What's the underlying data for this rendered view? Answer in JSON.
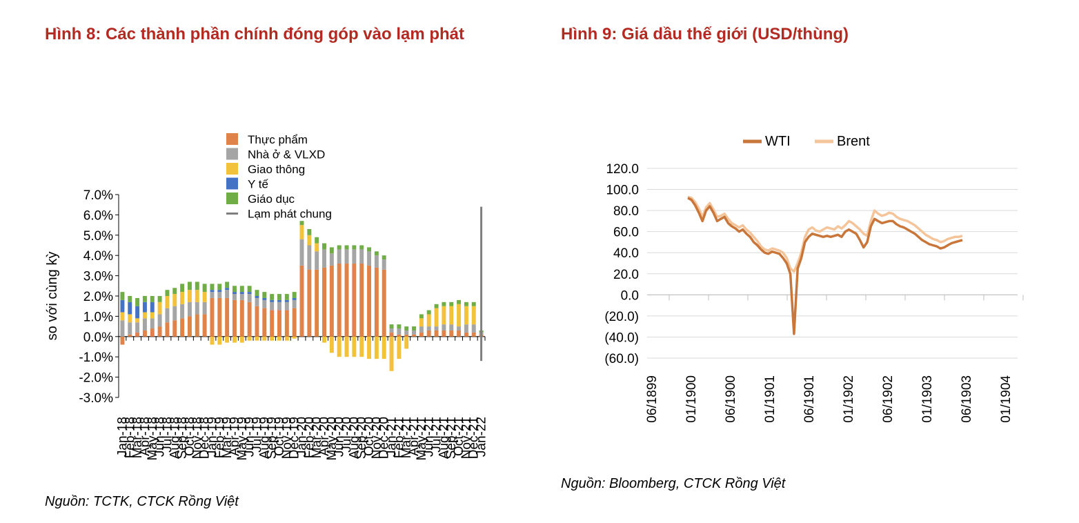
{
  "figure8": {
    "title": "Hình 8: Các thành phần chính đóng góp vào lạm phát",
    "source": "Nguồn: TCTK, CTCK Rồng Việt"
  },
  "figure9": {
    "title": "Hình 9: Giá dầu thế giới (USD/thùng)",
    "source": "Nguồn:  Bloomberg, CTCK Rồng Việt"
  },
  "chart_data": [
    {
      "type": "bar",
      "stacked": true,
      "ylabel": "so với cùng kỳ",
      "ylim": [
        -3.0,
        7.0
      ],
      "yticks": [
        "7.0%",
        "6.0%",
        "5.0%",
        "4.0%",
        "3.0%",
        "2.0%",
        "1.0%",
        "0.0%",
        "-1.0%",
        "-2.0%",
        "-3.0%"
      ],
      "legend_position": "top-center",
      "categories": [
        "Jan-18",
        "Feb-18",
        "Mar-18",
        "Apr-18",
        "May-18",
        "Jun-18",
        "Jul-18",
        "Aug-18",
        "Sep-18",
        "Oct-18",
        "Nov-18",
        "Dec-18",
        "Jan-19",
        "Feb-19",
        "Mar-19",
        "Apr-19",
        "May-19",
        "Jun-19",
        "Jul-19",
        "Aug-19",
        "Sep-19",
        "Oct-19",
        "Nov-19",
        "Dec-19",
        "Jan-20",
        "Feb-20",
        "Mar-20",
        "Apr-20",
        "May-20",
        "Jun-20",
        "Jul-20",
        "Aug-20",
        "Sep-20",
        "Oct-20",
        "Nov-20",
        "Dec-20",
        "Jan-21",
        "Feb-21",
        "Mar-21",
        "Apr-21",
        "May-21",
        "Jun-21",
        "Jul-21",
        "Aug-21",
        "Sep-21",
        "Oct-21",
        "Nov-21",
        "Dec-21",
        "Jan-22"
      ],
      "tick_labels": [
        "Jan-18",
        "Feb-18",
        "Mar-18",
        "Apr-18",
        "May-18",
        "Jun-18",
        "Jul-18",
        "Aug-18",
        "Sep-18",
        "Oct-18",
        "Nov-18",
        "Dec-18",
        "Jan-19",
        "Feb-19",
        "Mar-19",
        "Apr-19",
        "May-19",
        "Jun-19",
        "Jul-19",
        "Aug-19",
        "Sep-19",
        "Oct-19",
        "Nov-19",
        "Dec-19",
        "Jan-20",
        "Feb-20",
        "Mar-20",
        "Apr-20",
        "May-20",
        "Jun-20",
        "Jul-20",
        "Aug-20",
        "Sep-20",
        "Oct-20",
        "Nov-20",
        "Dec-20",
        "Jan-21",
        "Feb-21",
        "Mar-21",
        "Apr-21",
        "May-21",
        "Jun-21",
        "Jul-21",
        "Aug-21",
        "Sep-21",
        "Oct-21",
        "Nov-21",
        "Dec-21",
        "Jan-22"
      ],
      "series": [
        {
          "name": "Thực phẩm",
          "color": "#e0834a",
          "values": [
            -0.4,
            0.1,
            0.2,
            0.3,
            0.4,
            0.5,
            0.7,
            0.8,
            0.9,
            1.0,
            1.1,
            1.1,
            1.9,
            1.9,
            1.9,
            1.8,
            1.8,
            1.7,
            1.5,
            1.4,
            1.3,
            1.3,
            1.3,
            1.4,
            3.5,
            3.3,
            3.3,
            3.4,
            3.5,
            3.6,
            3.6,
            3.6,
            3.6,
            3.5,
            3.4,
            3.3,
            0.2,
            0.1,
            0.1,
            0.1,
            0.2,
            0.3,
            0.3,
            0.3,
            0.3,
            0.3,
            0.2,
            0.2,
            0.1
          ]
        },
        {
          "name": "Nhà ở & VLXD",
          "color": "#a5a5a5",
          "values": [
            0.8,
            0.6,
            0.5,
            0.6,
            0.5,
            0.6,
            0.7,
            0.7,
            0.7,
            0.7,
            0.6,
            0.6,
            0.3,
            0.3,
            0.4,
            0.3,
            0.3,
            0.4,
            0.4,
            0.4,
            0.4,
            0.4,
            0.4,
            0.4,
            1.3,
            1.2,
            0.9,
            0.9,
            0.6,
            0.7,
            0.7,
            0.7,
            0.7,
            0.7,
            0.6,
            0.5,
            0.2,
            0.3,
            0.2,
            0.2,
            0.3,
            0.2,
            0.2,
            0.3,
            0.3,
            0.2,
            0.4,
            0.4,
            0.1
          ]
        },
        {
          "name": "Giao thông",
          "color": "#f2c33a",
          "values": [
            0.4,
            0.4,
            0.2,
            0.3,
            0.3,
            0.6,
            0.6,
            0.6,
            0.6,
            0.6,
            0.6,
            0.5,
            -0.4,
            -0.4,
            -0.3,
            -0.3,
            -0.3,
            -0.2,
            -0.2,
            -0.2,
            -0.2,
            -0.2,
            -0.2,
            -0.1,
            0.7,
            0.5,
            0.4,
            -0.3,
            -0.8,
            -1.0,
            -1.0,
            -1.0,
            -1.0,
            -1.1,
            -1.1,
            -1.1,
            -1.7,
            -1.1,
            -0.6,
            0.0,
            0.4,
            0.6,
            0.9,
            0.9,
            0.9,
            1.1,
            0.9,
            0.9,
            0.0
          ]
        },
        {
          "name": "Y tế",
          "color": "#4472c4",
          "values": [
            0.6,
            0.6,
            0.6,
            0.5,
            0.5,
            0.0,
            0.0,
            0.0,
            0.0,
            0.0,
            0.0,
            0.0,
            0.1,
            0.1,
            0.1,
            0.1,
            0.1,
            0.1,
            0.1,
            0.1,
            0.1,
            0.1,
            0.1,
            0.1,
            0.0,
            0.0,
            0.0,
            0.0,
            0.0,
            0.0,
            0.0,
            0.0,
            0.0,
            0.0,
            0.0,
            0.0,
            0.0,
            0.0,
            0.0,
            0.0,
            0.0,
            0.0,
            0.0,
            0.0,
            0.0,
            0.0,
            0.0,
            0.0,
            0.0
          ]
        },
        {
          "name": "Giáo dục",
          "color": "#70ad47",
          "values": [
            0.4,
            0.3,
            0.4,
            0.3,
            0.3,
            0.3,
            0.3,
            0.3,
            0.4,
            0.4,
            0.4,
            0.4,
            0.3,
            0.3,
            0.3,
            0.3,
            0.3,
            0.3,
            0.3,
            0.3,
            0.3,
            0.3,
            0.3,
            0.3,
            0.2,
            0.3,
            0.3,
            0.3,
            0.3,
            0.2,
            0.2,
            0.2,
            0.2,
            0.2,
            0.2,
            0.2,
            0.2,
            0.2,
            0.2,
            0.2,
            0.2,
            0.2,
            0.2,
            0.2,
            0.2,
            0.2,
            0.2,
            0.2,
            0.1
          ]
        },
        {
          "name": "Lạm phát chung",
          "color": "#7f7f7f",
          "type": "line",
          "values": [
            null,
            null,
            null,
            null,
            null,
            null,
            null,
            null,
            null,
            null,
            null,
            null,
            null,
            null,
            null,
            null,
            null,
            null,
            null,
            null,
            null,
            null,
            null,
            null,
            null,
            null,
            null,
            null,
            null,
            null,
            null,
            null,
            null,
            null,
            null,
            null,
            null,
            null,
            null,
            null,
            null,
            null,
            null,
            null,
            null,
            null,
            null,
            null,
            6.4
          ],
          "note_start": -1.2
        }
      ]
    },
    {
      "type": "line",
      "ylim": [
        -60,
        120
      ],
      "yticks": [
        "120.0",
        "100.0",
        "80.0",
        "60.0",
        "40.0",
        "20.0",
        "0.0",
        "(20.0)",
        "(40.0)",
        "(60.0)"
      ],
      "xticks": [
        "06/1899",
        "01/1900",
        "06/1900",
        "01/1901",
        "06/1901",
        "01/1902",
        "06/1902",
        "01/1903",
        "06/1903",
        "01/1904"
      ],
      "legend_position": "top-center",
      "series": [
        {
          "name": "WTI",
          "color": "#c8763a",
          "values": [
            92,
            90,
            85,
            78,
            70,
            80,
            84,
            78,
            70,
            72,
            74,
            68,
            65,
            63,
            60,
            62,
            58,
            55,
            50,
            47,
            43,
            40,
            39,
            41,
            40,
            39,
            35,
            30,
            20,
            -37,
            25,
            35,
            50,
            55,
            58,
            57,
            56,
            55,
            56,
            55,
            56,
            57,
            55,
            60,
            62,
            60,
            58,
            52,
            45,
            50,
            65,
            72,
            70,
            68,
            69,
            70,
            70,
            67,
            65,
            64,
            62,
            60,
            58,
            55,
            52,
            50,
            48,
            47,
            46,
            44,
            45,
            47,
            49,
            50,
            51,
            52
          ]
        },
        {
          "name": "Brent",
          "color": "#f4c49a",
          "values": [
            93,
            92,
            88,
            82,
            74,
            83,
            87,
            81,
            74,
            75,
            77,
            72,
            68,
            66,
            64,
            66,
            62,
            59,
            55,
            51,
            46,
            43,
            42,
            44,
            43,
            42,
            40,
            35,
            25,
            22,
            30,
            40,
            55,
            62,
            64,
            61,
            60,
            62,
            64,
            63,
            62,
            65,
            63,
            66,
            70,
            68,
            65,
            62,
            58,
            56,
            70,
            80,
            77,
            75,
            76,
            78,
            77,
            74,
            72,
            71,
            70,
            68,
            66,
            63,
            60,
            57,
            55,
            53,
            52,
            50,
            51,
            53,
            54,
            55,
            55,
            56
          ]
        }
      ]
    }
  ]
}
